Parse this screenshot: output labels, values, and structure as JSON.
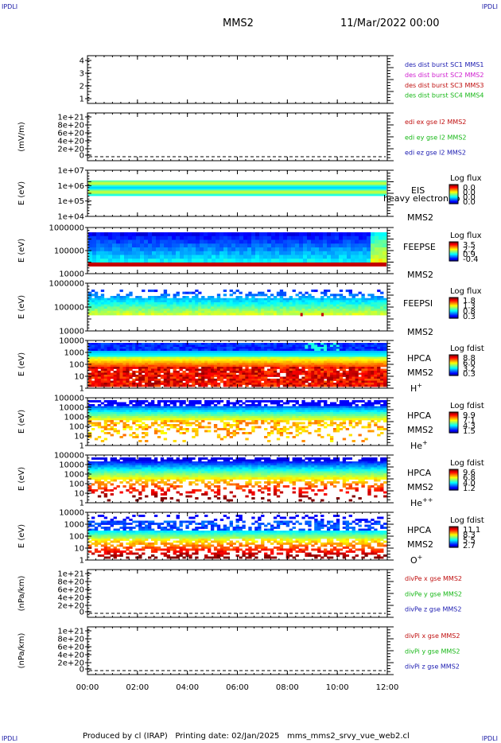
{
  "header": {
    "corner_left_top": "IPDLI",
    "corner_right_top": "IPDLI",
    "title": "MMS2",
    "datetime": "11/Mar/2022 00:00"
  },
  "footer": {
    "produced_by": "Produced by cl (IRAP)",
    "printing_date": "Printing date: 02/Jan/2025",
    "script_name": "mms_mms2_srvy_vue_web2.cl",
    "corner_left_bottom": "IPDLI",
    "corner_right_bottom": "IPDLI"
  },
  "colors": {
    "sc1": "#1a1ab0",
    "sc2": "#d020d0",
    "sc3": "#c01010",
    "sc4": "#18b818",
    "x": "#c01010",
    "y": "#18b818",
    "z": "#1a1ab0"
  },
  "chart_data": [
    {
      "type": "line",
      "id": "burst",
      "yticks": [
        "4",
        "3",
        "2",
        "1"
      ],
      "yrange": [
        0.5,
        4.5
      ],
      "legend": [
        {
          "label": "des dist burst SC1 MMS1",
          "color": "sc1"
        },
        {
          "label": "des dist burst SC2 MMS2",
          "color": "sc2"
        },
        {
          "label": "des dist burst SC3 MMS3",
          "color": "sc3"
        },
        {
          "label": "des dist burst SC4 MMS4",
          "color": "sc4"
        }
      ]
    },
    {
      "type": "line",
      "id": "edi",
      "ylabel": "(mV/m)",
      "yticks": [
        "1e+21",
        "8e+20",
        "6e+20",
        "4e+20",
        "2e+20",
        "0"
      ],
      "legend": [
        {
          "label": "edi ex gse l2 MMS2",
          "color": "x"
        },
        {
          "label": "edi ey gse l2 MMS2",
          "color": "y"
        },
        {
          "label": "edi ez gse l2 MMS2",
          "color": "z"
        }
      ]
    },
    {
      "type": "heatmap",
      "id": "eis",
      "ylabel": "E (eV)",
      "yticks": [
        "1e+07",
        "1e+06",
        "1e+05",
        "1e+04"
      ],
      "instrument": "EIS",
      "overlay": "heavy electron to",
      "spacecraft": "MMS2",
      "cbar_title": "Log flux",
      "cbar_ticks": [
        "0.0",
        "0.0",
        "0.0",
        "0.0"
      ]
    },
    {
      "type": "heatmap",
      "id": "feepse",
      "ylabel": "E (eV)",
      "yticks": [
        "1000000",
        "100000",
        "10000"
      ],
      "instrument": "FEEPSE",
      "spacecraft": "MMS2",
      "cbar_title": "Log flux",
      "cbar_ticks": [
        "3.5",
        "2.2",
        "0.9",
        "-0.4"
      ]
    },
    {
      "type": "heatmap",
      "id": "feepsi",
      "ylabel": "E (eV)",
      "yticks": [
        "1000000",
        "100000",
        "10000"
      ],
      "instrument": "FEEPSI",
      "spacecraft": "MMS2",
      "cbar_title": "Log flux",
      "cbar_ticks": [
        "1.8",
        "1.3",
        "0.8",
        "0.3"
      ]
    },
    {
      "type": "heatmap",
      "id": "hpca_h",
      "ylabel": "E (eV)",
      "yticks": [
        "10000",
        "1000",
        "100",
        "10",
        "1"
      ],
      "instrument": "HPCA",
      "spacecraft": "MMS2",
      "species": "H",
      "charge": "+",
      "cbar_title": "Log fdist",
      "cbar_ticks": [
        "8.8",
        "6.0",
        "3.2",
        "0.3"
      ]
    },
    {
      "type": "heatmap",
      "id": "hpca_he1",
      "ylabel": "E (eV)",
      "yticks": [
        "100000",
        "10000",
        "1000",
        "100",
        "10",
        "1"
      ],
      "instrument": "HPCA",
      "spacecraft": "MMS2",
      "species": "He",
      "charge": "+",
      "cbar_title": "Log fdist",
      "cbar_ticks": [
        "9.9",
        "7.1",
        "4.3",
        "1.5"
      ]
    },
    {
      "type": "heatmap",
      "id": "hpca_he2",
      "ylabel": "E (eV)",
      "yticks": [
        "100000",
        "10000",
        "1000",
        "100",
        "10",
        "1"
      ],
      "instrument": "HPCA",
      "spacecraft": "MMS2",
      "species": "He",
      "charge": "++",
      "cbar_title": "Log fdist",
      "cbar_ticks": [
        "9.6",
        "6.8",
        "4.0",
        "1.2"
      ]
    },
    {
      "type": "heatmap",
      "id": "hpca_o",
      "ylabel": "E (eV)",
      "yticks": [
        "10000",
        "1000",
        "100",
        "10",
        "1"
      ],
      "instrument": "HPCA",
      "spacecraft": "MMS2",
      "species": "O",
      "charge": "+",
      "cbar_title": "Log fdist",
      "cbar_ticks": [
        "11.1",
        "8.3",
        "5.5",
        "2.7"
      ]
    },
    {
      "type": "line",
      "id": "divpe",
      "ylabel": "(nPa/km)",
      "yticks": [
        "1e+21",
        "8e+20",
        "6e+20",
        "4e+20",
        "2e+20",
        "0"
      ],
      "legend": [
        {
          "label": "divPe x gse MMS2",
          "color": "x"
        },
        {
          "label": "divPe y gse MMS2",
          "color": "y"
        },
        {
          "label": "divPe z gse MMS2",
          "color": "z"
        }
      ]
    },
    {
      "type": "line",
      "id": "divpi",
      "ylabel": "(nPa/km)",
      "yticks": [
        "1e+21",
        "8e+20",
        "6e+20",
        "4e+20",
        "2e+20",
        "0"
      ],
      "legend": [
        {
          "label": "divPi x gse MMS2",
          "color": "x"
        },
        {
          "label": "divPi y gse MMS2",
          "color": "y"
        },
        {
          "label": "divPi z gse MMS2",
          "color": "z"
        }
      ]
    }
  ],
  "time_axis": {
    "ticks": [
      "00:00",
      "02:00",
      "04:00",
      "06:00",
      "08:00",
      "10:00",
      "12:00"
    ],
    "range": [
      "00:00",
      "12:00"
    ]
  }
}
